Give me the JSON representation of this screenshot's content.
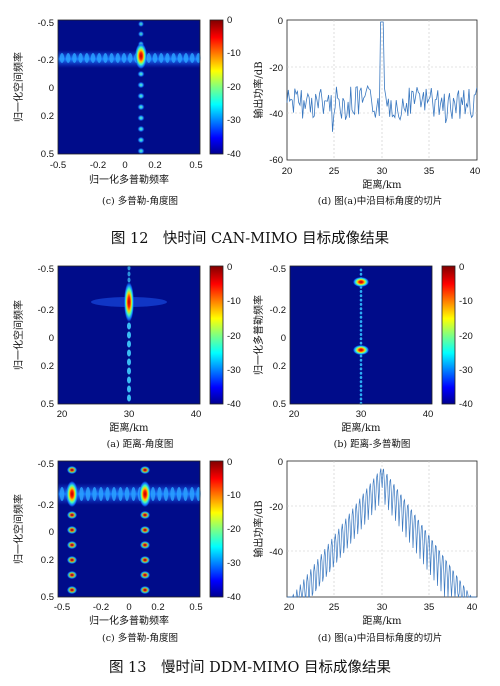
{
  "colors": {
    "jet": [
      "#00008f",
      "#0000ff",
      "#0080ff",
      "#00ffff",
      "#80ff80",
      "#ffff00",
      "#ff8000",
      "#ff0000",
      "#800000"
    ],
    "line": "#3a78c0"
  },
  "colorbar": {
    "ticks": [
      "0",
      "-10",
      "-20",
      "-30",
      "-40"
    ]
  },
  "figures": [
    {
      "caption": "图 12　快时间 CAN-MIMO 目标成像结果"
    },
    {
      "caption": "图 13　慢时间 DDM-MIMO 目标成像结果"
    }
  ],
  "panels": {
    "p1": {
      "caption": "(c)  多普勒-角度图",
      "xlabel": "归一化多普勒频率",
      "ylabel": "归一化空间频率",
      "xticks": [
        "-0.5",
        "-0.2",
        "0",
        "0.2",
        "0.5"
      ],
      "yticks": [
        "-0.5",
        "-0.2",
        "0",
        "0.2",
        "0.5"
      ]
    },
    "p2": {
      "caption": "(d)  图(a)中沿目标角度的切片",
      "xlabel": "距离/km",
      "ylabel": "输出功率/dB",
      "xticks": [
        "20",
        "25",
        "30",
        "35",
        "40"
      ],
      "yticks": [
        "0",
        "-20",
        "-40",
        "-60"
      ]
    },
    "p3": {
      "caption": "(a)  距离-角度图",
      "xlabel": "距离/km",
      "ylabel": "归一化空间频率",
      "xticks": [
        "20",
        "30",
        "40"
      ],
      "yticks": [
        "-0.5",
        "-0.2",
        "0",
        "0.2",
        "0.5"
      ]
    },
    "p4": {
      "caption": "(b)  距离-多普勒图",
      "xlabel": "距离/km",
      "ylabel": "归一化多普勒频率",
      "xticks": [
        "20",
        "30",
        "40"
      ],
      "yticks": [
        "-0.5",
        "-0.2",
        "0",
        "0.2",
        "0.5"
      ]
    },
    "p5": {
      "caption": "(c)  多普勒-角度图",
      "xlabel": "归一化多普勒频率",
      "ylabel": "归一化空间频率",
      "xticks": [
        "-0.5",
        "-0.2",
        "0",
        "0.2",
        "0.5"
      ],
      "yticks": [
        "-0.5",
        "-0.2",
        "0",
        "0.2",
        "0.5"
      ]
    },
    "p6": {
      "caption": "(d)  图(a)中沿目标角度的切片",
      "xlabel": "距离/km",
      "ylabel": "输出功率/dB",
      "xticks": [
        "20",
        "25",
        "30",
        "35",
        "40"
      ],
      "yticks": [
        "0",
        "-20",
        "-40"
      ]
    }
  }
}
